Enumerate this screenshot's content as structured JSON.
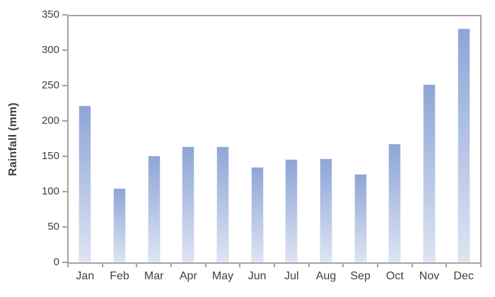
{
  "chart_data": {
    "type": "bar",
    "title": "",
    "xlabel": "",
    "ylabel": "Rainfall (mm)",
    "categories": [
      "Jan",
      "Feb",
      "Mar",
      "Apr",
      "May",
      "Jun",
      "Jul",
      "Aug",
      "Sep",
      "Oct",
      "Nov",
      "Dec"
    ],
    "values": [
      222,
      105,
      151,
      164,
      164,
      135,
      146,
      147,
      125,
      168,
      252,
      331
    ],
    "ylim": [
      0,
      350
    ],
    "yticks": [
      0,
      50,
      100,
      150,
      200,
      250,
      300,
      350
    ],
    "grid": false,
    "legend_position": "none",
    "bar_color_top": "#8ea5d7",
    "bar_color_bottom": "#dde4f2",
    "bar_border_color": "#e9eef8",
    "axis_color": "#a3a3a3",
    "label_color": "#404040"
  }
}
